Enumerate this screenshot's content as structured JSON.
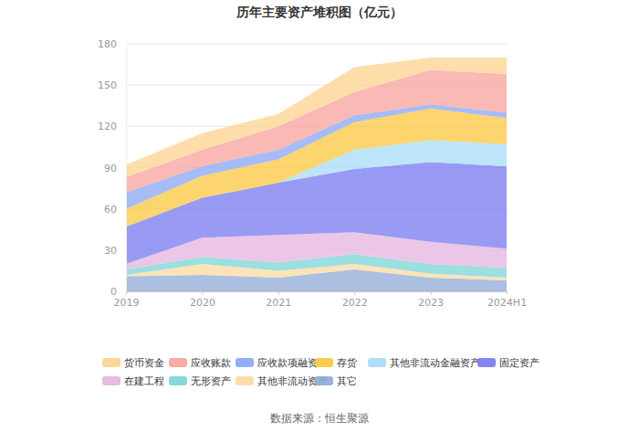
{
  "chart_data": {
    "type": "area",
    "title": "历年主要资产堆积图（亿元）",
    "source": "数据来源：恒生聚源",
    "categories": [
      "2019",
      "2020",
      "2021",
      "2022",
      "2023",
      "2024H1"
    ],
    "stacked": true,
    "grid": true,
    "legend": "bottom",
    "ylim": [
      0,
      180
    ],
    "yticks": [
      0,
      30,
      60,
      90,
      120,
      150,
      180
    ],
    "series": [
      {
        "name": "货币资金",
        "color": "#fcd38f",
        "values": [
          9,
          12,
          9,
          18,
          9,
          12
        ]
      },
      {
        "name": "应收账款",
        "color": "#f8a19b",
        "values": [
          11,
          12,
          17,
          17,
          25,
          28
        ]
      },
      {
        "name": "应收款项融资",
        "color": "#8aa4f3",
        "values": [
          12,
          7,
          7,
          5,
          3,
          4
        ]
      },
      {
        "name": "存货",
        "color": "#fbc73f",
        "values": [
          13,
          16,
          17,
          20,
          23,
          19
        ]
      },
      {
        "name": "其他非流动金融资产",
        "color": "#a6dcf7",
        "values": [
          0,
          0,
          0,
          14,
          16,
          16
        ]
      },
      {
        "name": "固定资产",
        "color": "#7778ef",
        "values": [
          27,
          29,
          38,
          46,
          58,
          60
        ]
      },
      {
        "name": "在建工程",
        "color": "#e5b3df",
        "values": [
          4,
          14,
          20,
          16,
          16,
          14
        ]
      },
      {
        "name": "无形资产",
        "color": "#79d4d6",
        "values": [
          4,
          5,
          6,
          7,
          7,
          7
        ]
      },
      {
        "name": "其他非流动资产",
        "color": "#fcd9a0",
        "values": [
          1,
          8,
          5,
          4,
          3,
          2
        ]
      },
      {
        "name": "其它",
        "color": "#8faad6",
        "values": [
          11,
          12,
          10,
          16,
          10,
          8
        ]
      }
    ]
  }
}
